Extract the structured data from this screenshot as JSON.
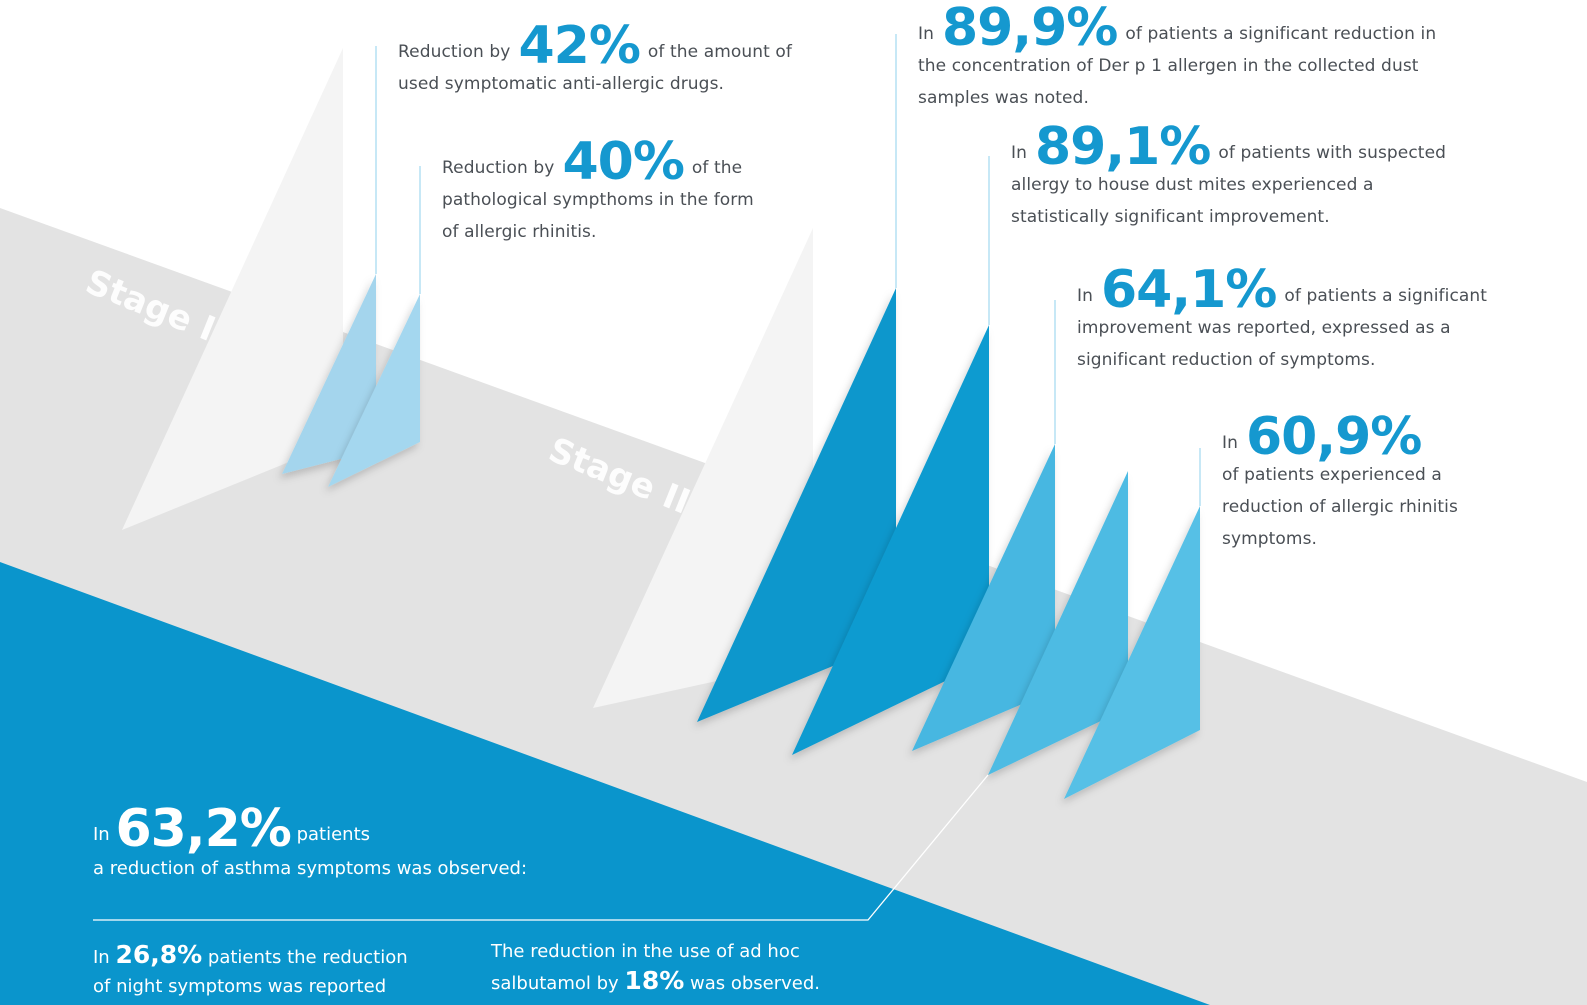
{
  "colors": {
    "deep_blue": "#0d97cc",
    "mid_blue": "#4dbbe3",
    "light_blue": "#a4d7ef",
    "band_gray": "#e3e3e3",
    "pale_gray": "#f4f4f4"
  },
  "stages": {
    "stage1": "Stage I",
    "stage2": "Stage II"
  },
  "stage1_stats": [
    {
      "prefix": "Reduction by",
      "value": "42%",
      "text": "of the amount of used symptomatic anti-allergic drugs."
    },
    {
      "prefix": "Reduction by",
      "value": "40%",
      "text": "of the pathological sympthoms in the form of allergic rhinitis."
    }
  ],
  "stage2_stats": [
    {
      "prefix": "In",
      "value": "89,9%",
      "text": "of patients a significant reduction in the concentration of Der p 1 allergen in the collected dust samples was noted."
    },
    {
      "prefix": "In",
      "value": "89,1%",
      "text": "of patients with suspected allergy to house dust mites experienced a statistically significant improvement."
    },
    {
      "prefix": "In",
      "value": "64,1%",
      "text": "of patients a significant improvement was reported, expressed as a significant reduction of symptoms."
    },
    {
      "prefix": "In",
      "value": "60,9%",
      "text": "of patients experienced a reduction of allergic rhinitis symptoms."
    }
  ],
  "asthma": {
    "prefix": "In",
    "value": "63,2%",
    "suffix": "patients",
    "line2": "a reduction of asthma symptoms was observed:",
    "night": {
      "prefix": "In",
      "value": "26,8%",
      "text": "patients the reduction of night symptoms was reported"
    },
    "salbutamol": {
      "line1": "The reduction in the use of ad hoc",
      "prefix": "salbutamol by",
      "value": "18%",
      "text": "was observed."
    }
  }
}
